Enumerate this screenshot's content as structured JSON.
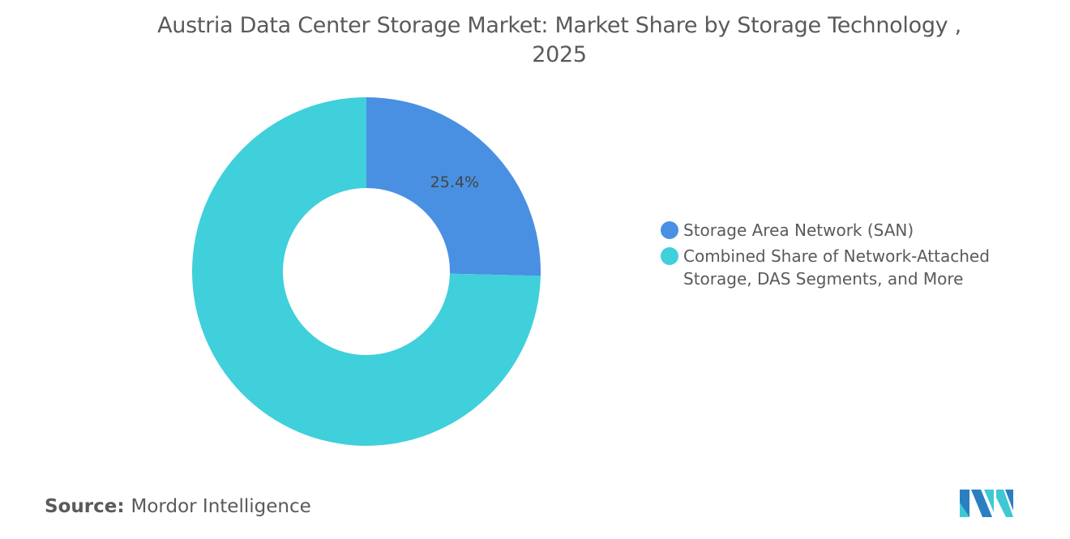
{
  "chart_data": {
    "type": "pie",
    "variant": "donut",
    "title": "Austria Data Center Storage Market: Market Share by Storage Technology , 2025",
    "slices": [
      {
        "name": "Storage Area Network (SAN)",
        "value": 25.4,
        "label": "25.4%",
        "color": "#4a90e2"
      },
      {
        "name": "Combined Share of Network-Attached Storage, DAS Segments, and More",
        "value": 74.6,
        "label": "",
        "color": "#3fd0db"
      }
    ],
    "legend_position": "right"
  },
  "title_line1": "Austria Data Center Storage Market: Market Share by Storage Technology ,",
  "title_line2": "2025",
  "legend": [
    {
      "line1": "Storage Area Network (SAN)",
      "line2": ""
    },
    {
      "line1": "Combined Share of Network-Attached",
      "line2": "Storage, DAS Segments, and More"
    }
  ],
  "source": {
    "label": "Source:",
    "value": "Mordor Intelligence"
  },
  "logo": {
    "text": "Mordor Intelligence",
    "colors": [
      "#2a7fc1",
      "#3fc8d4"
    ]
  }
}
